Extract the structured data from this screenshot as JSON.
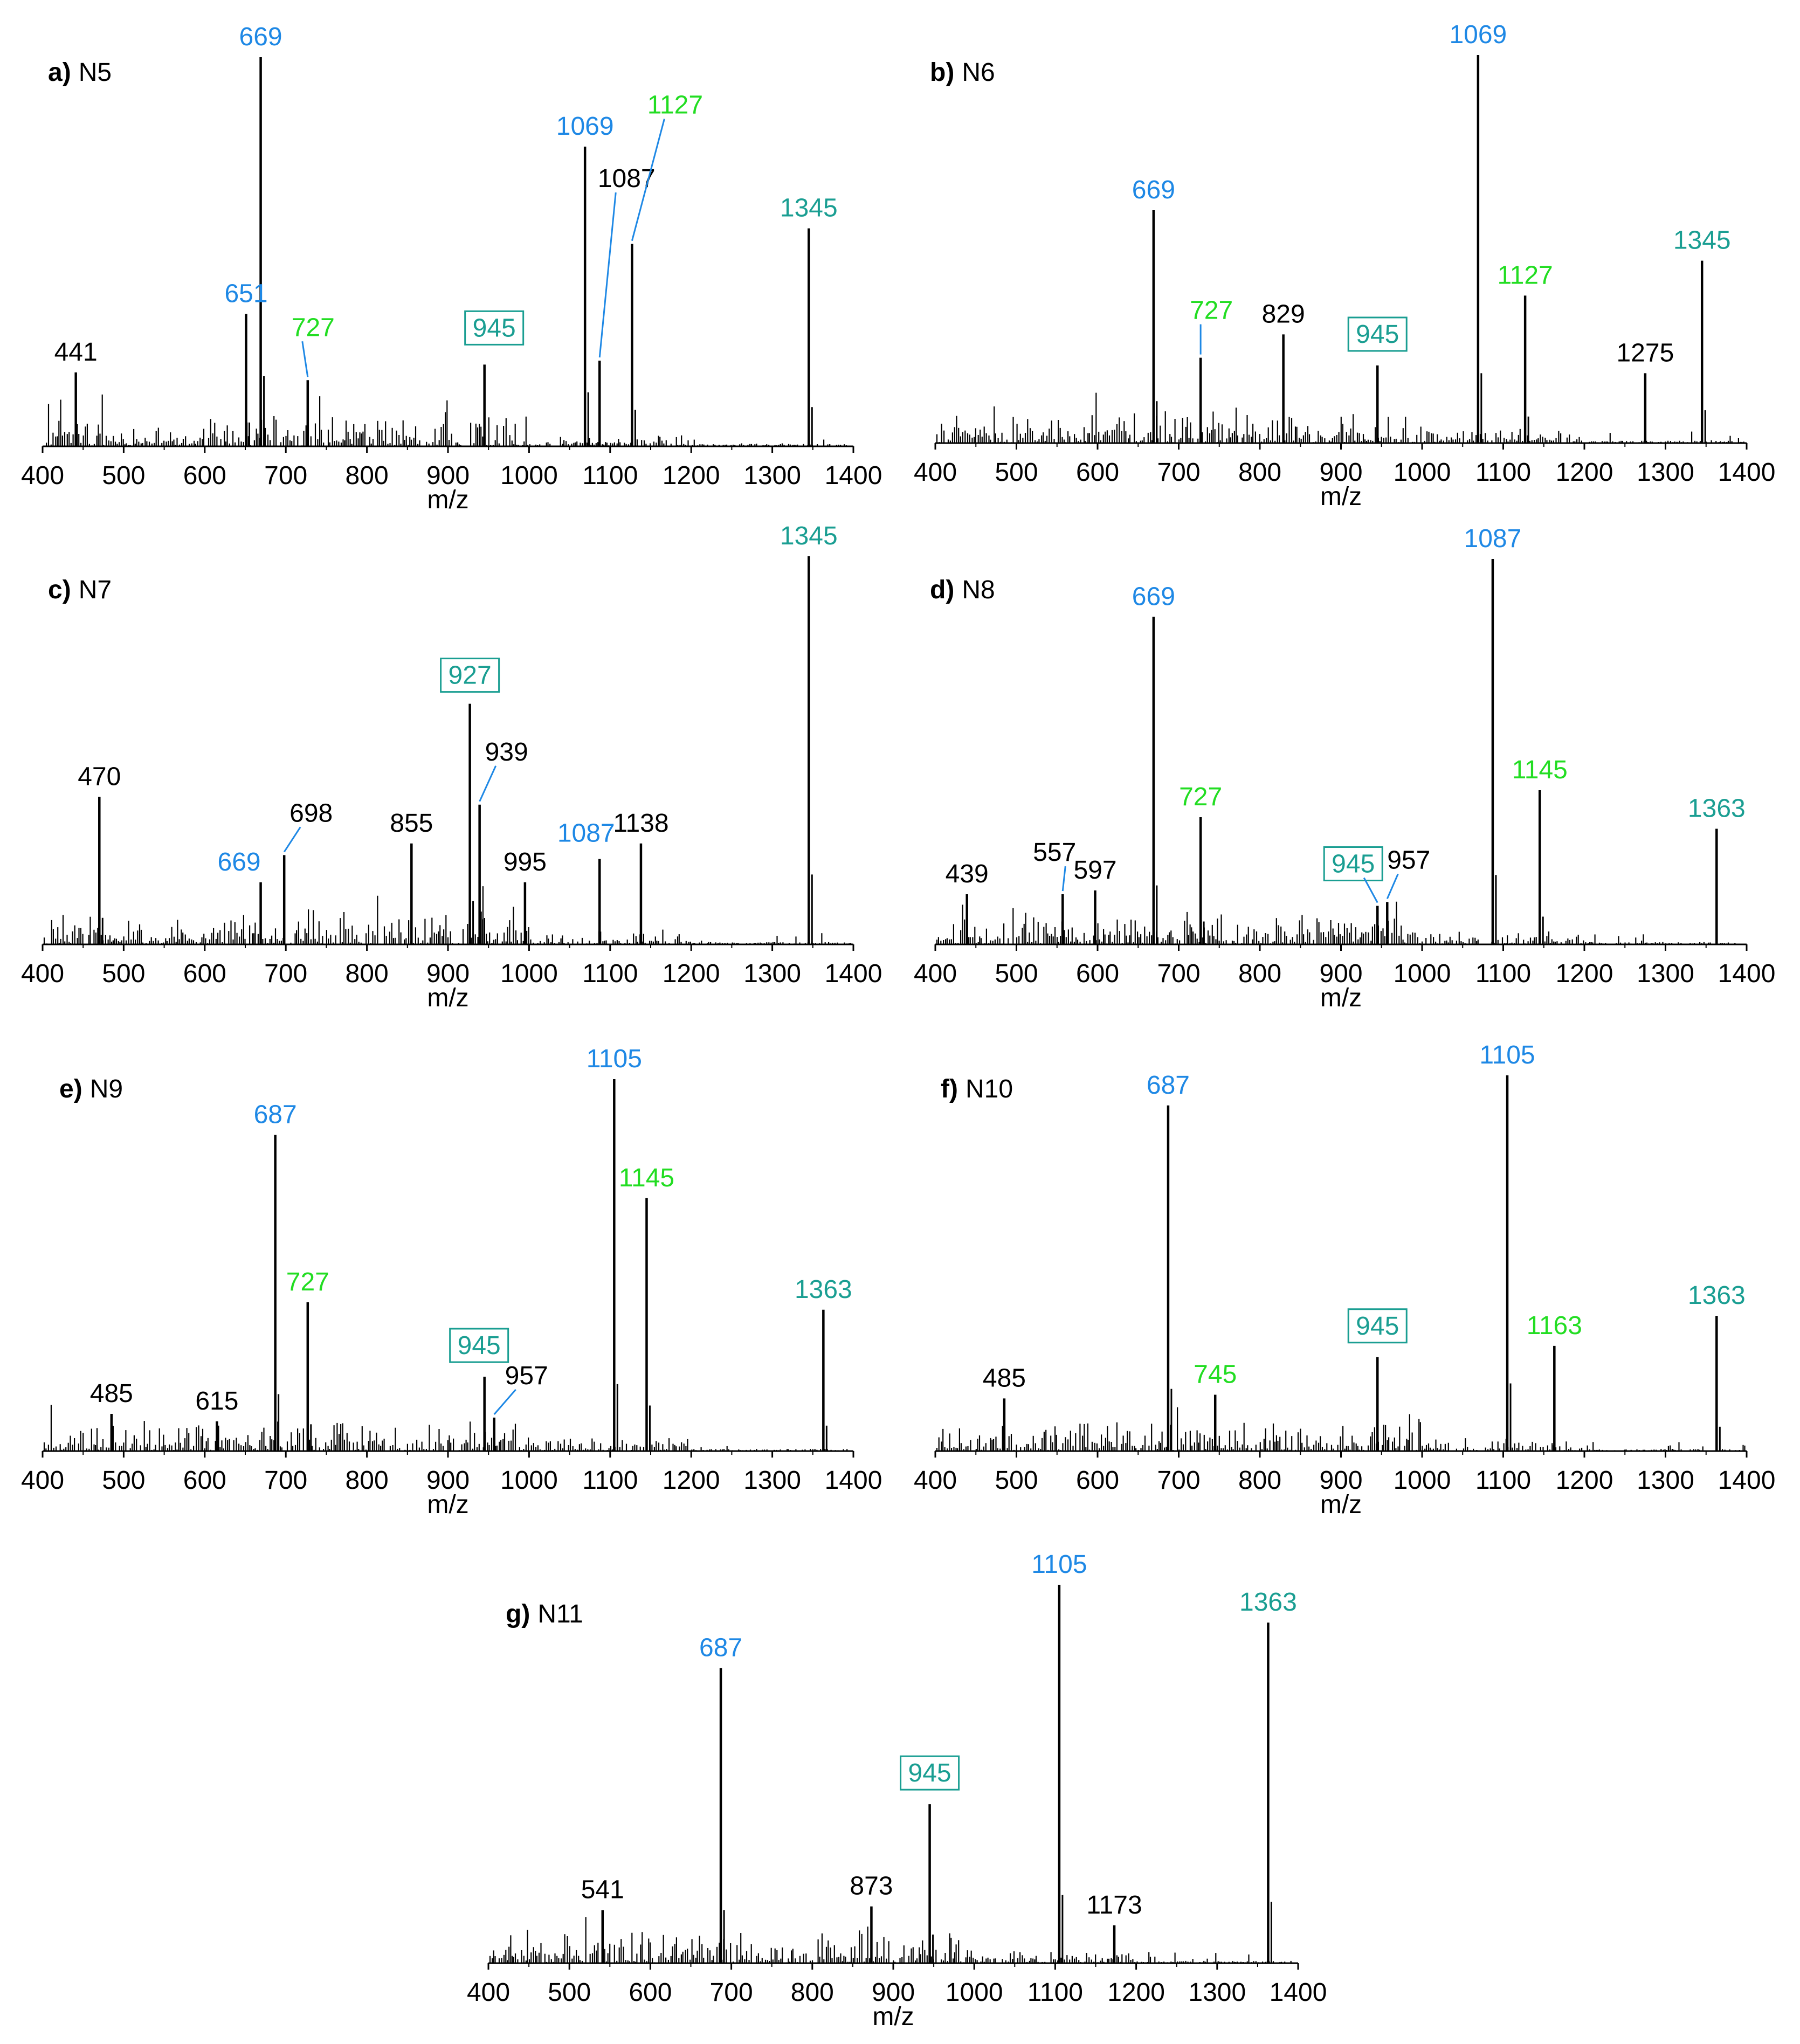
{
  "colors": {
    "black": "#000000",
    "blue": "#1E88E5",
    "green": "#22DD22",
    "teal": "#1A9E92"
  },
  "axis_label": "m/z",
  "chart_data": [
    {
      "type": "bar",
      "id": "a",
      "letter": "a)",
      "title": "N5",
      "xlabel": "m/z",
      "xlim": [
        400,
        1400
      ],
      "xticks": [
        400,
        500,
        600,
        700,
        800,
        900,
        1000,
        1100,
        1200,
        1300,
        1400
      ],
      "ylim": [
        0,
        100
      ],
      "peaks": [
        {
          "x": 669,
          "y": 100,
          "label": "669",
          "color": "blue"
        },
        {
          "x": 651,
          "y": 34,
          "label": "651",
          "color": "blue"
        },
        {
          "x": 441,
          "y": 19,
          "label": "441",
          "color": "black"
        },
        {
          "x": 727,
          "y": 17,
          "label": "727",
          "color": "green",
          "leader": true
        },
        {
          "x": 945,
          "y": 21,
          "label": "945",
          "color": "teal",
          "boxed": true
        },
        {
          "x": 1069,
          "y": 77,
          "label": "1069",
          "color": "blue"
        },
        {
          "x": 1087,
          "y": 22,
          "label": "1087",
          "color": "black",
          "leader": true
        },
        {
          "x": 1127,
          "y": 52,
          "label": "1127",
          "color": "green",
          "leader": true
        },
        {
          "x": 1345,
          "y": 56,
          "label": "1345",
          "color": "teal"
        }
      ]
    },
    {
      "type": "bar",
      "id": "b",
      "letter": "b)",
      "title": "N6",
      "xlabel": "m/z",
      "xlim": [
        400,
        1400
      ],
      "xticks": [
        400,
        500,
        600,
        700,
        800,
        900,
        1000,
        1100,
        1200,
        1300,
        1400
      ],
      "ylim": [
        0,
        100
      ],
      "peaks": [
        {
          "x": 669,
          "y": 60,
          "label": "669",
          "color": "blue"
        },
        {
          "x": 727,
          "y": 22,
          "label": "727",
          "color": "green",
          "leader": true
        },
        {
          "x": 829,
          "y": 28,
          "label": "829",
          "color": "black"
        },
        {
          "x": 945,
          "y": 20,
          "label": "945",
          "color": "teal",
          "boxed": true
        },
        {
          "x": 1069,
          "y": 100,
          "label": "1069",
          "color": "blue"
        },
        {
          "x": 1127,
          "y": 38,
          "label": "1127",
          "color": "green"
        },
        {
          "x": 1275,
          "y": 18,
          "label": "1275",
          "color": "black"
        },
        {
          "x": 1345,
          "y": 47,
          "label": "1345",
          "color": "teal"
        }
      ]
    },
    {
      "type": "bar",
      "id": "c",
      "letter": "c)",
      "title": "N7",
      "xlabel": "m/z",
      "xlim": [
        400,
        1400
      ],
      "xticks": [
        400,
        500,
        600,
        700,
        800,
        900,
        1000,
        1100,
        1200,
        1300,
        1400
      ],
      "ylim": [
        0,
        100
      ],
      "peaks": [
        {
          "x": 470,
          "y": 38,
          "label": "470",
          "color": "black"
        },
        {
          "x": 669,
          "y": 16,
          "label": "669",
          "color": "blue"
        },
        {
          "x": 698,
          "y": 23,
          "label": "698",
          "color": "black",
          "leader": true
        },
        {
          "x": 855,
          "y": 26,
          "label": "855",
          "color": "black"
        },
        {
          "x": 927,
          "y": 62,
          "label": "927",
          "color": "teal",
          "boxed": true
        },
        {
          "x": 939,
          "y": 36,
          "label": "939",
          "color": "black",
          "leader": true
        },
        {
          "x": 995,
          "y": 16,
          "label": "995",
          "color": "black"
        },
        {
          "x": 1087,
          "y": 22,
          "label": "1087",
          "color": "blue"
        },
        {
          "x": 1138,
          "y": 26,
          "label": "1138",
          "color": "black"
        },
        {
          "x": 1345,
          "y": 100,
          "label": "1345",
          "color": "teal"
        }
      ]
    },
    {
      "type": "bar",
      "id": "d",
      "letter": "d)",
      "title": "N8",
      "xlabel": "m/z",
      "xlim": [
        400,
        1400
      ],
      "xticks": [
        400,
        500,
        600,
        700,
        800,
        900,
        1000,
        1100,
        1200,
        1300,
        1400
      ],
      "ylim": [
        0,
        100
      ],
      "peaks": [
        {
          "x": 439,
          "y": 13,
          "label": "439",
          "color": "black"
        },
        {
          "x": 557,
          "y": 13,
          "label": "557",
          "color": "black",
          "leader": true
        },
        {
          "x": 597,
          "y": 14,
          "label": "597",
          "color": "black"
        },
        {
          "x": 669,
          "y": 85,
          "label": "669",
          "color": "blue"
        },
        {
          "x": 727,
          "y": 33,
          "label": "727",
          "color": "green"
        },
        {
          "x": 945,
          "y": 10,
          "label": "945",
          "color": "teal",
          "boxed": true,
          "leader": true
        },
        {
          "x": 957,
          "y": 11,
          "label": "957",
          "color": "black",
          "leader": true
        },
        {
          "x": 1087,
          "y": 100,
          "label": "1087",
          "color": "blue"
        },
        {
          "x": 1145,
          "y": 40,
          "label": "1145",
          "color": "green"
        },
        {
          "x": 1363,
          "y": 30,
          "label": "1363",
          "color": "teal"
        }
      ]
    },
    {
      "type": "bar",
      "id": "e",
      "letter": "e)",
      "title": "N9",
      "xlabel": "m/z",
      "xlim": [
        400,
        1400
      ],
      "xticks": [
        400,
        500,
        600,
        700,
        800,
        900,
        1000,
        1100,
        1200,
        1300,
        1400
      ],
      "ylim": [
        0,
        100
      ],
      "peaks": [
        {
          "x": 485,
          "y": 10,
          "label": "485",
          "color": "black"
        },
        {
          "x": 615,
          "y": 8,
          "label": "615",
          "color": "black"
        },
        {
          "x": 687,
          "y": 85,
          "label": "687",
          "color": "blue"
        },
        {
          "x": 727,
          "y": 40,
          "label": "727",
          "color": "green"
        },
        {
          "x": 945,
          "y": 20,
          "label": "945",
          "color": "teal",
          "boxed": true
        },
        {
          "x": 957,
          "y": 9,
          "label": "957",
          "color": "black",
          "leader": true
        },
        {
          "x": 1105,
          "y": 100,
          "label": "1105",
          "color": "blue"
        },
        {
          "x": 1145,
          "y": 68,
          "label": "1145",
          "color": "green"
        },
        {
          "x": 1363,
          "y": 38,
          "label": "1363",
          "color": "teal"
        }
      ]
    },
    {
      "type": "bar",
      "id": "f",
      "letter": "f)",
      "title": "N10",
      "xlabel": "m/z",
      "xlim": [
        400,
        1400
      ],
      "xticks": [
        400,
        500,
        600,
        700,
        800,
        900,
        1000,
        1100,
        1200,
        1300,
        1400
      ],
      "ylim": [
        0,
        100
      ],
      "peaks": [
        {
          "x": 485,
          "y": 14,
          "label": "485",
          "color": "black"
        },
        {
          "x": 687,
          "y": 92,
          "label": "687",
          "color": "blue"
        },
        {
          "x": 745,
          "y": 15,
          "label": "745",
          "color": "green"
        },
        {
          "x": 945,
          "y": 25,
          "label": "945",
          "color": "teal",
          "boxed": true
        },
        {
          "x": 1105,
          "y": 100,
          "label": "1105",
          "color": "blue"
        },
        {
          "x": 1163,
          "y": 28,
          "label": "1163",
          "color": "green"
        },
        {
          "x": 1363,
          "y": 36,
          "label": "1363",
          "color": "teal"
        }
      ]
    },
    {
      "type": "bar",
      "id": "g",
      "letter": "g)",
      "title": "N11",
      "xlabel": "m/z",
      "xlim": [
        400,
        1400
      ],
      "xticks": [
        400,
        500,
        600,
        700,
        800,
        900,
        1000,
        1100,
        1200,
        1300,
        1400
      ],
      "ylim": [
        0,
        100
      ],
      "peaks": [
        {
          "x": 541,
          "y": 14,
          "label": "541",
          "color": "black"
        },
        {
          "x": 687,
          "y": 78,
          "label": "687",
          "color": "blue"
        },
        {
          "x": 873,
          "y": 15,
          "label": "873",
          "color": "black"
        },
        {
          "x": 945,
          "y": 42,
          "label": "945",
          "color": "teal",
          "boxed": true
        },
        {
          "x": 1105,
          "y": 100,
          "label": "1105",
          "color": "blue"
        },
        {
          "x": 1173,
          "y": 10,
          "label": "1173",
          "color": "black"
        },
        {
          "x": 1363,
          "y": 90,
          "label": "1363",
          "color": "teal"
        }
      ]
    }
  ]
}
